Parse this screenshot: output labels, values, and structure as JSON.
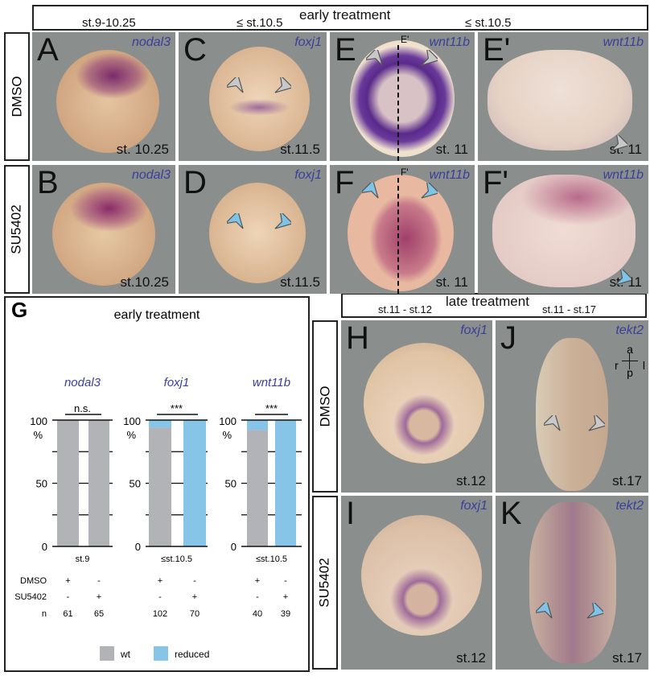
{
  "early_header": {
    "title": "early treatment",
    "stages": [
      "st.9-10.25",
      "≤ st.10.5",
      "≤ st.10.5"
    ]
  },
  "late_header": {
    "title": "late treatment",
    "stages": [
      "st.11 - st.12",
      "st.11 - st.17"
    ]
  },
  "row_labels": {
    "early_dmso": "DMSO",
    "early_su": "SU5402",
    "late_dmso": "DMSO",
    "late_su": "SU5402"
  },
  "panels": [
    {
      "label": "A",
      "gene": "nodal3",
      "stage": "st. 10.25",
      "arrow": "none"
    },
    {
      "label": "C",
      "gene": "foxj1",
      "stage": "st.11.5",
      "arrow": "grey"
    },
    {
      "label": "E",
      "gene": "wnt11b",
      "stage": "st. 11",
      "arrow": "grey",
      "section": "E'"
    },
    {
      "label": "E'",
      "gene": "wnt11b",
      "stage": "st. 11",
      "arrow": "grey"
    },
    {
      "label": "B",
      "gene": "nodal3",
      "stage": "st.10.25",
      "arrow": "none"
    },
    {
      "label": "D",
      "gene": "foxj1",
      "stage": "st.11.5",
      "arrow": "blue"
    },
    {
      "label": "F",
      "gene": "wnt11b",
      "stage": "st. 11",
      "arrow": "blue",
      "section": "F'"
    },
    {
      "label": "F'",
      "gene": "wnt11b",
      "stage": "st. 11",
      "arrow": "blue"
    },
    {
      "label": "H",
      "gene": "foxj1",
      "stage": "st.12",
      "arrow": "none"
    },
    {
      "label": "J",
      "gene": "tekt2",
      "stage": "st.17",
      "arrow": "grey"
    },
    {
      "label": "I",
      "gene": "foxj1",
      "stage": "st.12",
      "arrow": "none"
    },
    {
      "label": "K",
      "gene": "tekt2",
      "stage": "st.17",
      "arrow": "blue"
    }
  ],
  "axis_legend": {
    "a": "a",
    "p": "p",
    "r": "r",
    "l": "l"
  },
  "colors": {
    "wt": "#b1b3b6",
    "reduced": "#86c5e8",
    "gene_text": "#3a3f9a",
    "panel_bg": "#8a8e8d"
  },
  "chart_data": {
    "type": "bar",
    "panel_label": "G",
    "title": "early treatment",
    "ylim": [
      0,
      100
    ],
    "yticks": [
      "0",
      "50",
      "100"
    ],
    "ylabel": "%",
    "groups": [
      {
        "gene": "nodal3",
        "stage": "st.9",
        "significance": "n.s.",
        "bars": [
          {
            "dmso": "+",
            "su5402": "-",
            "n": "61",
            "wt": 100,
            "reduced": 0
          },
          {
            "dmso": "-",
            "su5402": "+",
            "n": "65",
            "wt": 100,
            "reduced": 0
          }
        ]
      },
      {
        "gene": "foxj1",
        "stage": "≤st.10.5",
        "significance": "***",
        "bars": [
          {
            "dmso": "+",
            "su5402": "-",
            "n": "102",
            "wt": 94,
            "reduced": 6
          },
          {
            "dmso": "-",
            "su5402": "+",
            "n": "70",
            "wt": 0,
            "reduced": 100
          }
        ]
      },
      {
        "gene": "wnt11b",
        "stage": "≤st.10.5",
        "significance": "***",
        "bars": [
          {
            "dmso": "+",
            "su5402": "-",
            "n": "40",
            "wt": 92,
            "reduced": 8
          },
          {
            "dmso": "-",
            "su5402": "+",
            "n": "39",
            "wt": 0,
            "reduced": 100
          }
        ]
      }
    ],
    "row_labels": [
      "DMSO",
      "SU5402",
      "n"
    ],
    "legend": [
      {
        "name": "wt",
        "color": "#b1b3b6"
      },
      {
        "name": "reduced",
        "color": "#86c5e8"
      }
    ],
    "legend_placement": "bottom"
  }
}
